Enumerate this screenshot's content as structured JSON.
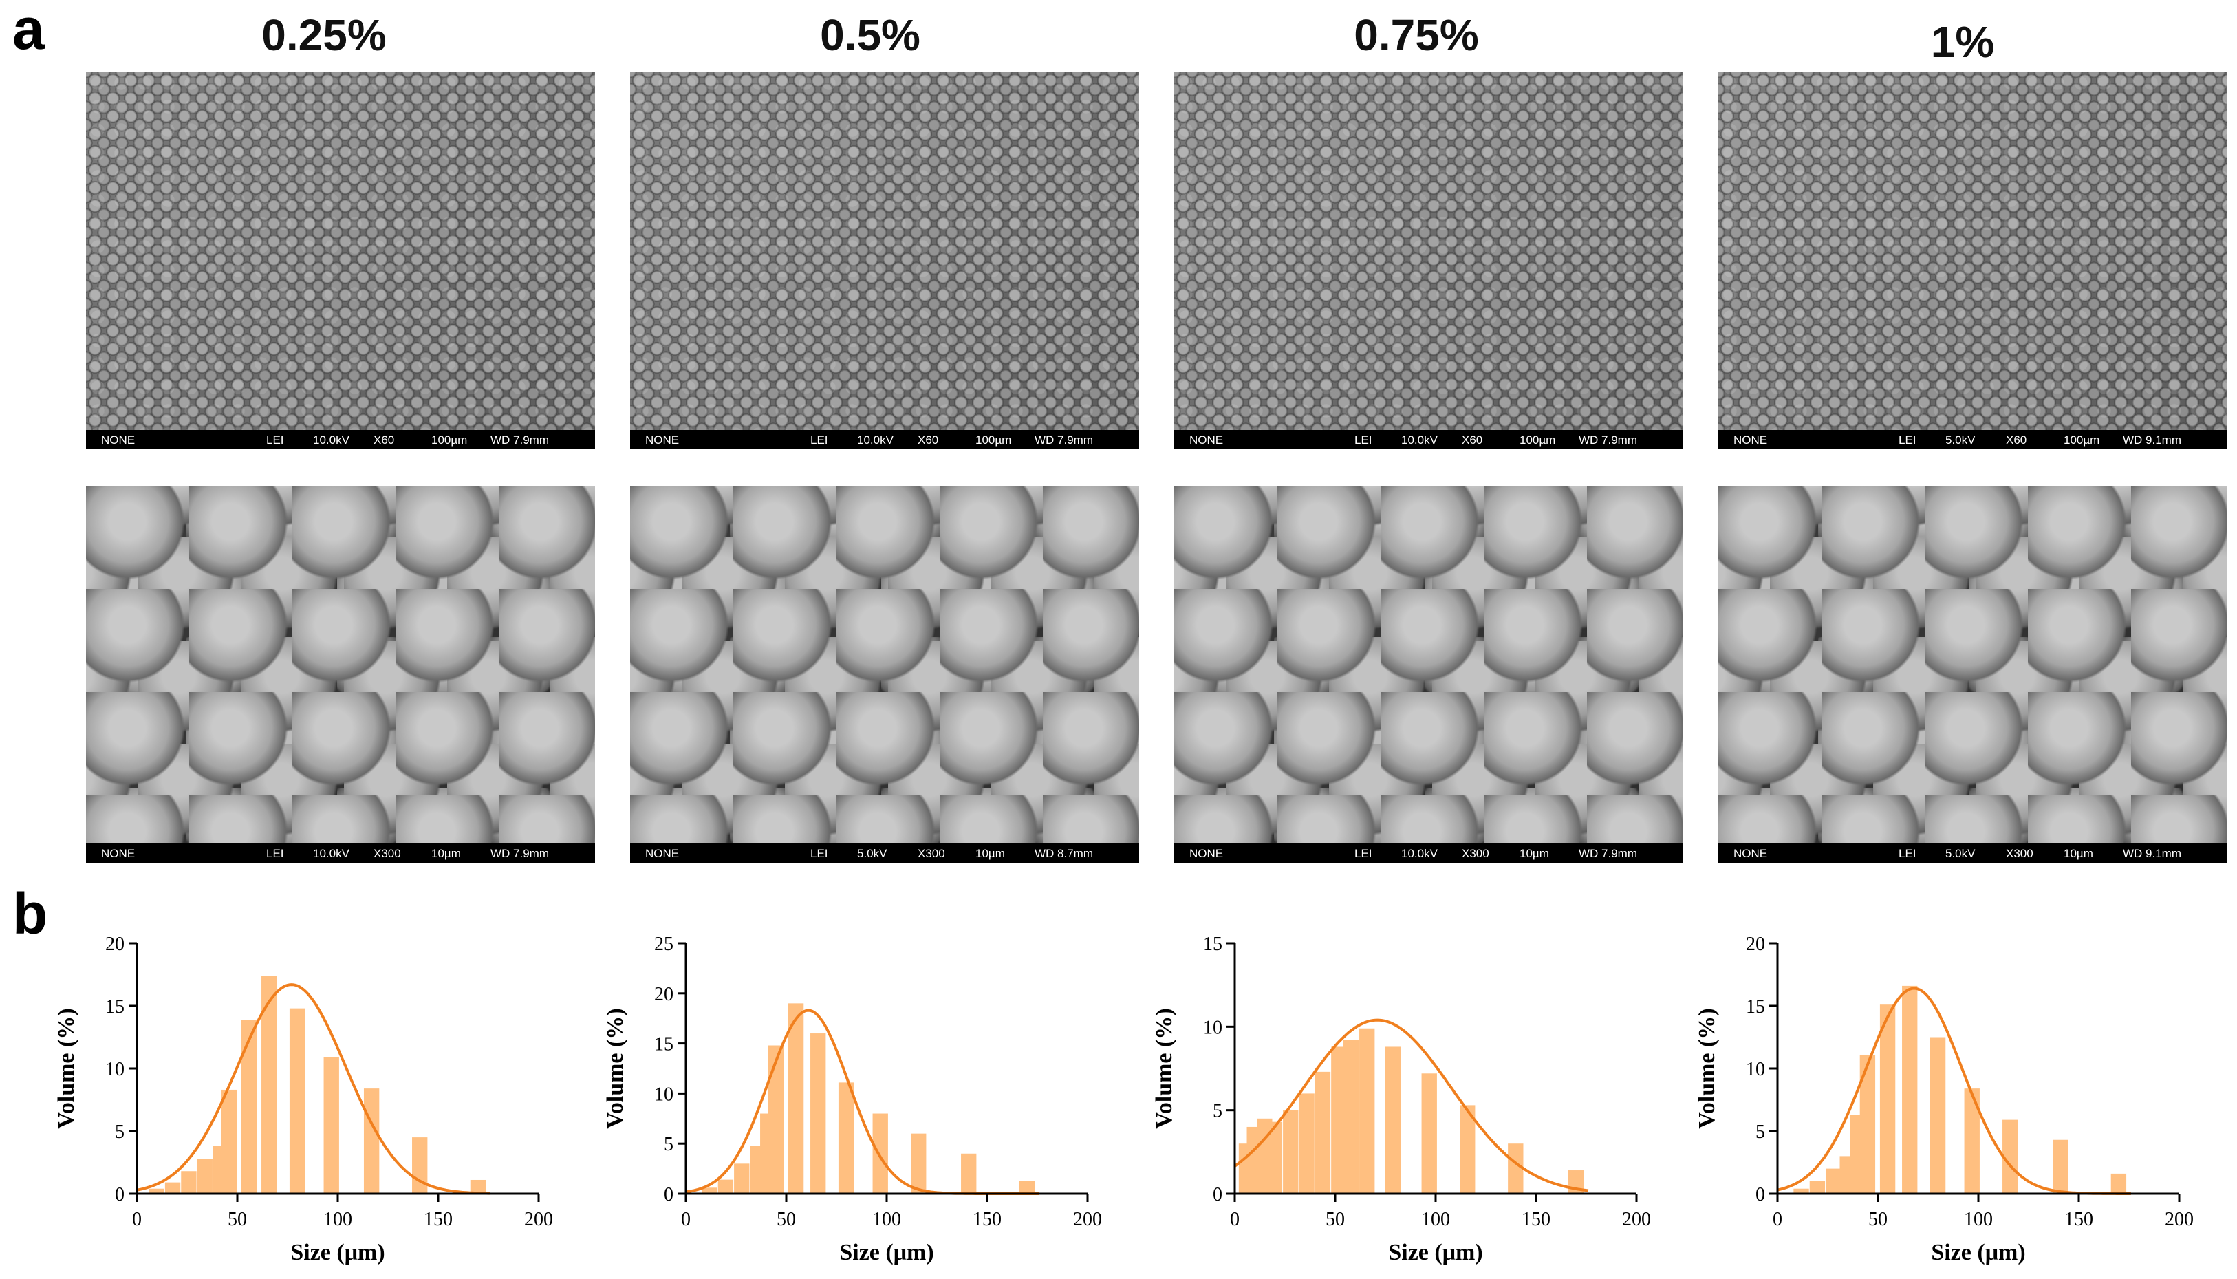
{
  "panel_labels": {
    "a": "a",
    "b": "b"
  },
  "columns": [
    {
      "title": "0.25%"
    },
    {
      "title": "0.5%"
    },
    {
      "title": "0.75%"
    },
    {
      "title": "1%"
    }
  ],
  "sem_images": [
    [
      {
        "left": "NONE",
        "mode": "LEI",
        "kv": "10.0kV",
        "mag": "X60",
        "scale": "100µm",
        "wd": "WD 7.9mm"
      },
      {
        "left": "NONE",
        "mode": "LEI",
        "kv": "10.0kV",
        "mag": "X300",
        "scale": "10µm",
        "wd": "WD 7.9mm"
      }
    ],
    [
      {
        "left": "NONE",
        "mode": "LEI",
        "kv": "10.0kV",
        "mag": "X60",
        "scale": "100µm",
        "wd": "WD 7.9mm"
      },
      {
        "left": "NONE",
        "mode": "LEI",
        "kv": "5.0kV",
        "mag": "X300",
        "scale": "10µm",
        "wd": "WD 8.7mm"
      }
    ],
    [
      {
        "left": "NONE",
        "mode": "LEI",
        "kv": "10.0kV",
        "mag": "X60",
        "scale": "100µm",
        "wd": "WD 7.9mm"
      },
      {
        "left": "NONE",
        "mode": "LEI",
        "kv": "10.0kV",
        "mag": "X300",
        "scale": "10µm",
        "wd": "WD 7.9mm"
      }
    ],
    [
      {
        "left": "NONE",
        "mode": "LEI",
        "kv": "5.0kV",
        "mag": "X60",
        "scale": "100µm",
        "wd": "WD 9.1mm"
      },
      {
        "left": "NONE",
        "mode": "LEI",
        "kv": "5.0kV",
        "mag": "X300",
        "scale": "10µm",
        "wd": "WD 9.1mm"
      }
    ]
  ],
  "colors": {
    "bar": "#ffbf80",
    "curve": "#f07f1e",
    "axis": "#000000"
  },
  "chart_data": [
    {
      "type": "bar",
      "xlabel": "Size (μm)",
      "ylabel": "Volume (%)",
      "xlim": [
        0,
        200
      ],
      "ylim": [
        0,
        20
      ],
      "xticks": [
        0,
        50,
        100,
        150,
        200
      ],
      "yticks": [
        0,
        5,
        10,
        15,
        20
      ],
      "bin_width": 8,
      "bins": [
        {
          "x": 10,
          "y": 0.4
        },
        {
          "x": 18,
          "y": 0.9
        },
        {
          "x": 26,
          "y": 1.8
        },
        {
          "x": 34,
          "y": 2.8
        },
        {
          "x": 42,
          "y": 3.8
        },
        {
          "x": 46,
          "y": 8.3
        },
        {
          "x": 56,
          "y": 13.9
        },
        {
          "x": 66,
          "y": 17.4
        },
        {
          "x": 80,
          "y": 14.8
        },
        {
          "x": 97,
          "y": 10.9
        },
        {
          "x": 117,
          "y": 8.4
        },
        {
          "x": 141,
          "y": 4.5
        },
        {
          "x": 170,
          "y": 1.1
        }
      ],
      "fit": {
        "mu": 77,
        "sigma": 27,
        "peak": 16.7
      }
    },
    {
      "type": "bar",
      "xlabel": "Size (μm)",
      "ylabel": "Volume (%)",
      "xlim": [
        0,
        200
      ],
      "ylim": [
        0,
        25
      ],
      "xticks": [
        0,
        50,
        100,
        150,
        200
      ],
      "yticks": [
        0,
        5,
        10,
        15,
        20,
        25
      ],
      "bin_width": 8,
      "bins": [
        {
          "x": 12,
          "y": 0.6
        },
        {
          "x": 20,
          "y": 1.4
        },
        {
          "x": 28,
          "y": 3.0
        },
        {
          "x": 36,
          "y": 4.8
        },
        {
          "x": 41,
          "y": 8.0
        },
        {
          "x": 45,
          "y": 14.8
        },
        {
          "x": 55,
          "y": 19.0
        },
        {
          "x": 66,
          "y": 16.0
        },
        {
          "x": 80,
          "y": 11.1
        },
        {
          "x": 97,
          "y": 8.0
        },
        {
          "x": 116,
          "y": 6.0
        },
        {
          "x": 141,
          "y": 4.0
        },
        {
          "x": 170,
          "y": 1.3
        }
      ],
      "fit": {
        "mu": 61,
        "sigma": 20,
        "peak": 18.3
      }
    },
    {
      "type": "bar",
      "xlabel": "Size (μm)",
      "ylabel": "Volume (%)",
      "xlim": [
        0,
        200
      ],
      "ylim": [
        0,
        15
      ],
      "xticks": [
        0,
        50,
        100,
        150,
        200
      ],
      "yticks": [
        0,
        5,
        10,
        15
      ],
      "bin_width": 8,
      "bins": [
        {
          "x": 6,
          "y": 3.0
        },
        {
          "x": 10,
          "y": 4.0
        },
        {
          "x": 15,
          "y": 4.5
        },
        {
          "x": 20,
          "y": 4.3
        },
        {
          "x": 28,
          "y": 5.0
        },
        {
          "x": 36,
          "y": 6.0
        },
        {
          "x": 44,
          "y": 7.3
        },
        {
          "x": 52,
          "y": 8.8
        },
        {
          "x": 58,
          "y": 9.2
        },
        {
          "x": 66,
          "y": 9.9
        },
        {
          "x": 79,
          "y": 8.8
        },
        {
          "x": 97,
          "y": 7.2
        },
        {
          "x": 116,
          "y": 5.3
        },
        {
          "x": 140,
          "y": 3.0
        },
        {
          "x": 170,
          "y": 1.4
        }
      ],
      "fit": {
        "mu": 71,
        "sigma": 37,
        "peak": 10.4
      }
    },
    {
      "type": "bar",
      "xlabel": "Size (μm)",
      "ylabel": "Volume (%)",
      "xlim": [
        0,
        200
      ],
      "ylim": [
        0,
        20
      ],
      "xticks": [
        0,
        50,
        100,
        150,
        200
      ],
      "yticks": [
        0,
        5,
        10,
        15,
        20
      ],
      "bin_width": 8,
      "bins": [
        {
          "x": 12,
          "y": 0.4
        },
        {
          "x": 20,
          "y": 1.0
        },
        {
          "x": 28,
          "y": 2.0
        },
        {
          "x": 35,
          "y": 3.0
        },
        {
          "x": 40,
          "y": 6.3
        },
        {
          "x": 45,
          "y": 11.1
        },
        {
          "x": 55,
          "y": 15.1
        },
        {
          "x": 66,
          "y": 16.6
        },
        {
          "x": 80,
          "y": 12.5
        },
        {
          "x": 97,
          "y": 8.4
        },
        {
          "x": 116,
          "y": 5.9
        },
        {
          "x": 141,
          "y": 4.3
        },
        {
          "x": 170,
          "y": 1.6
        }
      ],
      "fit": {
        "mu": 68,
        "sigma": 24,
        "peak": 16.4
      }
    }
  ]
}
